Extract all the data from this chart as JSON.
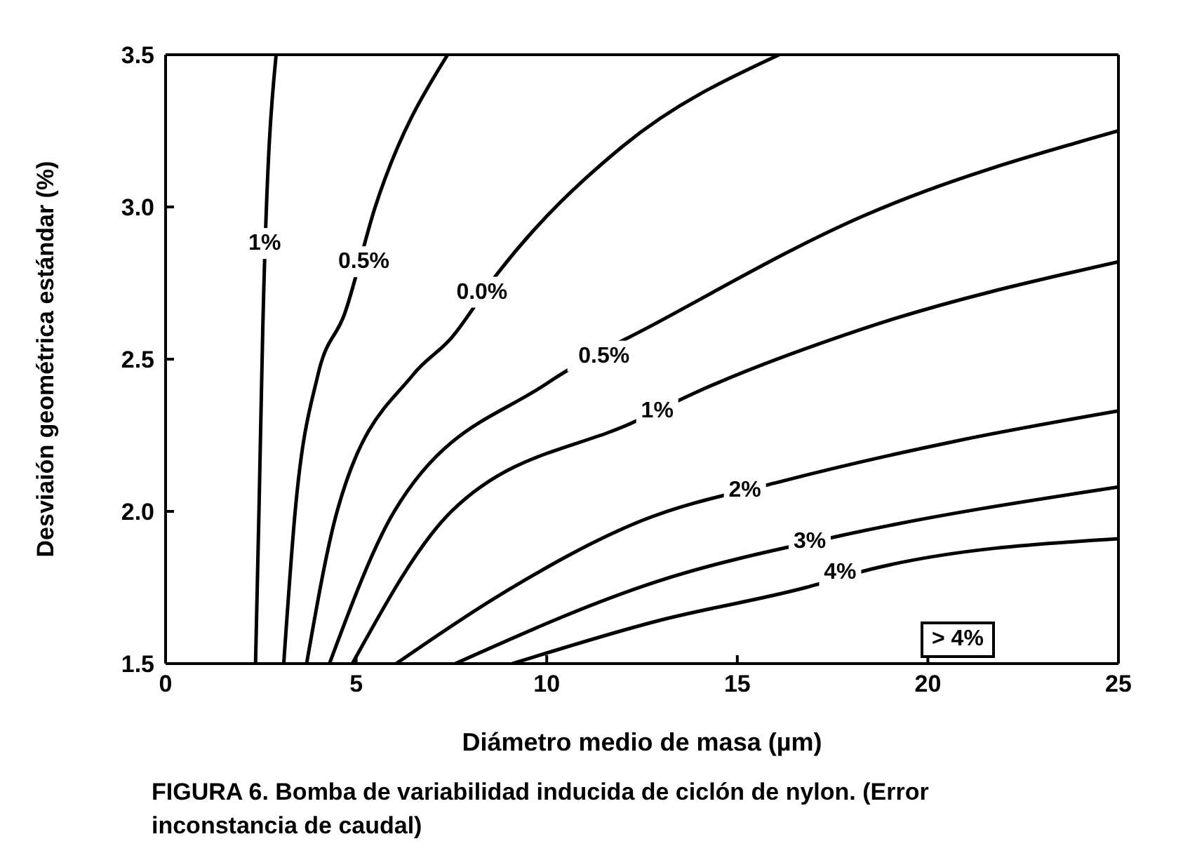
{
  "chart_data": {
    "type": "line",
    "xlabel": "Diámetro medio de masa (µm)",
    "ylabel": "Desviaión geométrica estándar  (%)",
    "xlim": [
      0,
      25
    ],
    "xticks": [
      0,
      5,
      10,
      15,
      20,
      25
    ],
    "ylim": [
      1.5,
      3.5
    ],
    "yticks": [
      1.5,
      {
        "value": 2,
        "label": "2.0"
      },
      2.5,
      {
        "value": 3,
        "label": "3.0"
      },
      3.5
    ],
    "legend": false,
    "marker": "none",
    "line_style": "solid",
    "series": [
      {
        "color": "#000000",
        "x": [
          2.36,
          2.45,
          2.55,
          2.9
        ],
        "values": [
          1.5,
          2.0,
          2.6,
          3.5
        ]
      },
      {
        "color": "#000000",
        "x": [
          3.1,
          3.4,
          4.0,
          4.7,
          5.5,
          7.4
        ],
        "values": [
          1.5,
          2.0,
          2.45,
          2.65,
          3.0,
          3.5
        ]
      },
      {
        "color": "#000000",
        "x": [
          3.7,
          4.5,
          6.5,
          7.5,
          8.7,
          12.0,
          16.1
        ],
        "values": [
          1.5,
          2.0,
          2.45,
          2.57,
          2.78,
          3.2,
          3.5
        ]
      },
      {
        "color": "#000000",
        "x": [
          4.3,
          6.0,
          10.0,
          12.9,
          18.3,
          25
        ],
        "values": [
          1.5,
          2.0,
          2.42,
          2.62,
          2.97,
          3.25
        ]
      },
      {
        "color": "#000000",
        "x": [
          4.9,
          7.5,
          12.4,
          13.9,
          18.3,
          25
        ],
        "values": [
          1.5,
          2.0,
          2.3,
          2.39,
          2.6,
          2.82
        ]
      },
      {
        "color": "#000000",
        "x": [
          6.05,
          8.7,
          12.5,
          16.2,
          20.7,
          25
        ],
        "values": [
          1.5,
          1.72,
          1.97,
          2.1,
          2.23,
          2.33
        ]
      },
      {
        "color": "#000000",
        "x": [
          7.6,
          12.9,
          17.7,
          25
        ],
        "values": [
          1.5,
          1.77,
          1.92,
          2.08
        ]
      },
      {
        "color": "#000000",
        "x": [
          9.1,
          12.9,
          16.8,
          18.5,
          25
        ],
        "values": [
          1.5,
          1.64,
          1.75,
          1.81,
          1.91
        ]
      }
    ],
    "annotations": [
      {
        "text": "1%",
        "x": 2.6,
        "y": 2.88
      },
      {
        "text": "0.5%",
        "x": 5.2,
        "y": 2.82
      },
      {
        "text": "0.0%",
        "x": 8.3,
        "y": 2.72
      },
      {
        "text": "0.5%",
        "x": 11.5,
        "y": 2.51
      },
      {
        "text": "1%",
        "x": 12.9,
        "y": 2.33
      },
      {
        "text": "2%",
        "x": 15.2,
        "y": 2.07
      },
      {
        "text": "3%",
        "x": 16.9,
        "y": 1.9
      },
      {
        "text": "4%",
        "x": 17.7,
        "y": 1.8
      },
      "> 4%",
      "FIGURA 6. Bomba de variabilidad inducida de ciclón de nylon. (Error inconstancia de caudal)"
    ]
  }
}
